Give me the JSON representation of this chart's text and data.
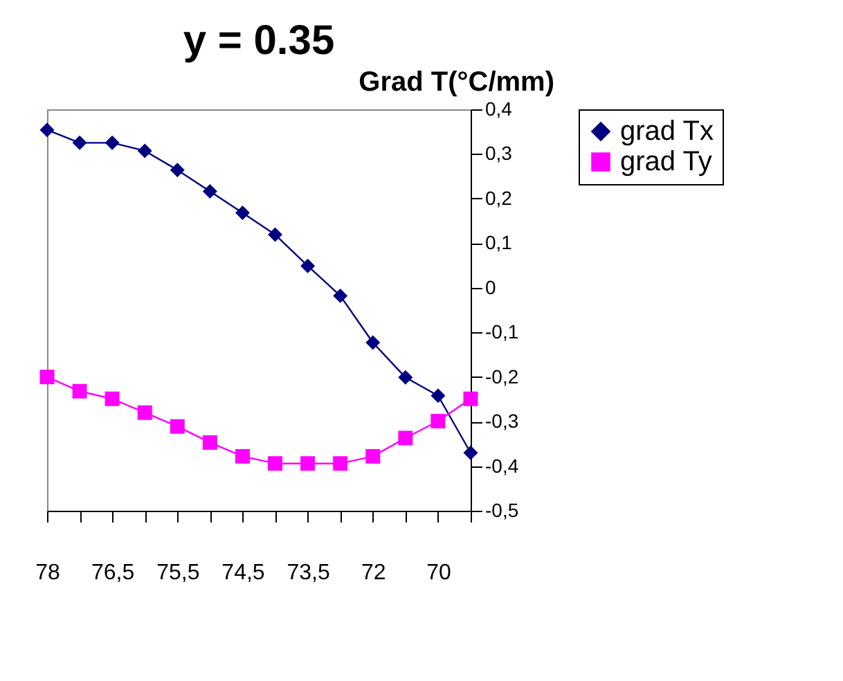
{
  "chart_data": {
    "type": "line",
    "title": "y = 0.35",
    "ylabel": "Grad T(°C/mm)",
    "categories": [
      "78",
      null,
      "76,5",
      null,
      "75,5",
      null,
      "74,5",
      null,
      "73,5",
      null,
      "72",
      null,
      "70",
      null
    ],
    "series": [
      {
        "name": "grad Tx",
        "color": "#000080",
        "marker": "diamond",
        "values": [
          0.354,
          0.325,
          0.325,
          0.307,
          0.264,
          0.216,
          0.168,
          0.119,
          0.049,
          -0.018,
          -0.123,
          -0.201,
          -0.242,
          -0.37
        ]
      },
      {
        "name": "grad Ty",
        "color": "#ff00ff",
        "marker": "square",
        "values": [
          -0.2,
          -0.232,
          -0.249,
          -0.28,
          -0.311,
          -0.347,
          -0.378,
          -0.394,
          -0.394,
          -0.394,
          -0.378,
          -0.337,
          -0.299,
          -0.249
        ]
      }
    ],
    "ylim": [
      -0.5,
      0.4
    ],
    "yticks": [
      {
        "value": 0.4,
        "label": "0,4"
      },
      {
        "value": 0.3,
        "label": "0,3"
      },
      {
        "value": 0.2,
        "label": "0,2"
      },
      {
        "value": 0.1,
        "label": "0,1"
      },
      0,
      {
        "value": -0.1,
        "label": "-0,1"
      },
      {
        "value": -0.2,
        "label": "-0,2"
      },
      {
        "value": -0.3,
        "label": "-0,3"
      },
      {
        "value": -0.4,
        "label": "-0,4"
      },
      {
        "value": -0.5,
        "label": "-0,5"
      }
    ],
    "grid": false,
    "legend": "right",
    "line_style": "solid"
  }
}
